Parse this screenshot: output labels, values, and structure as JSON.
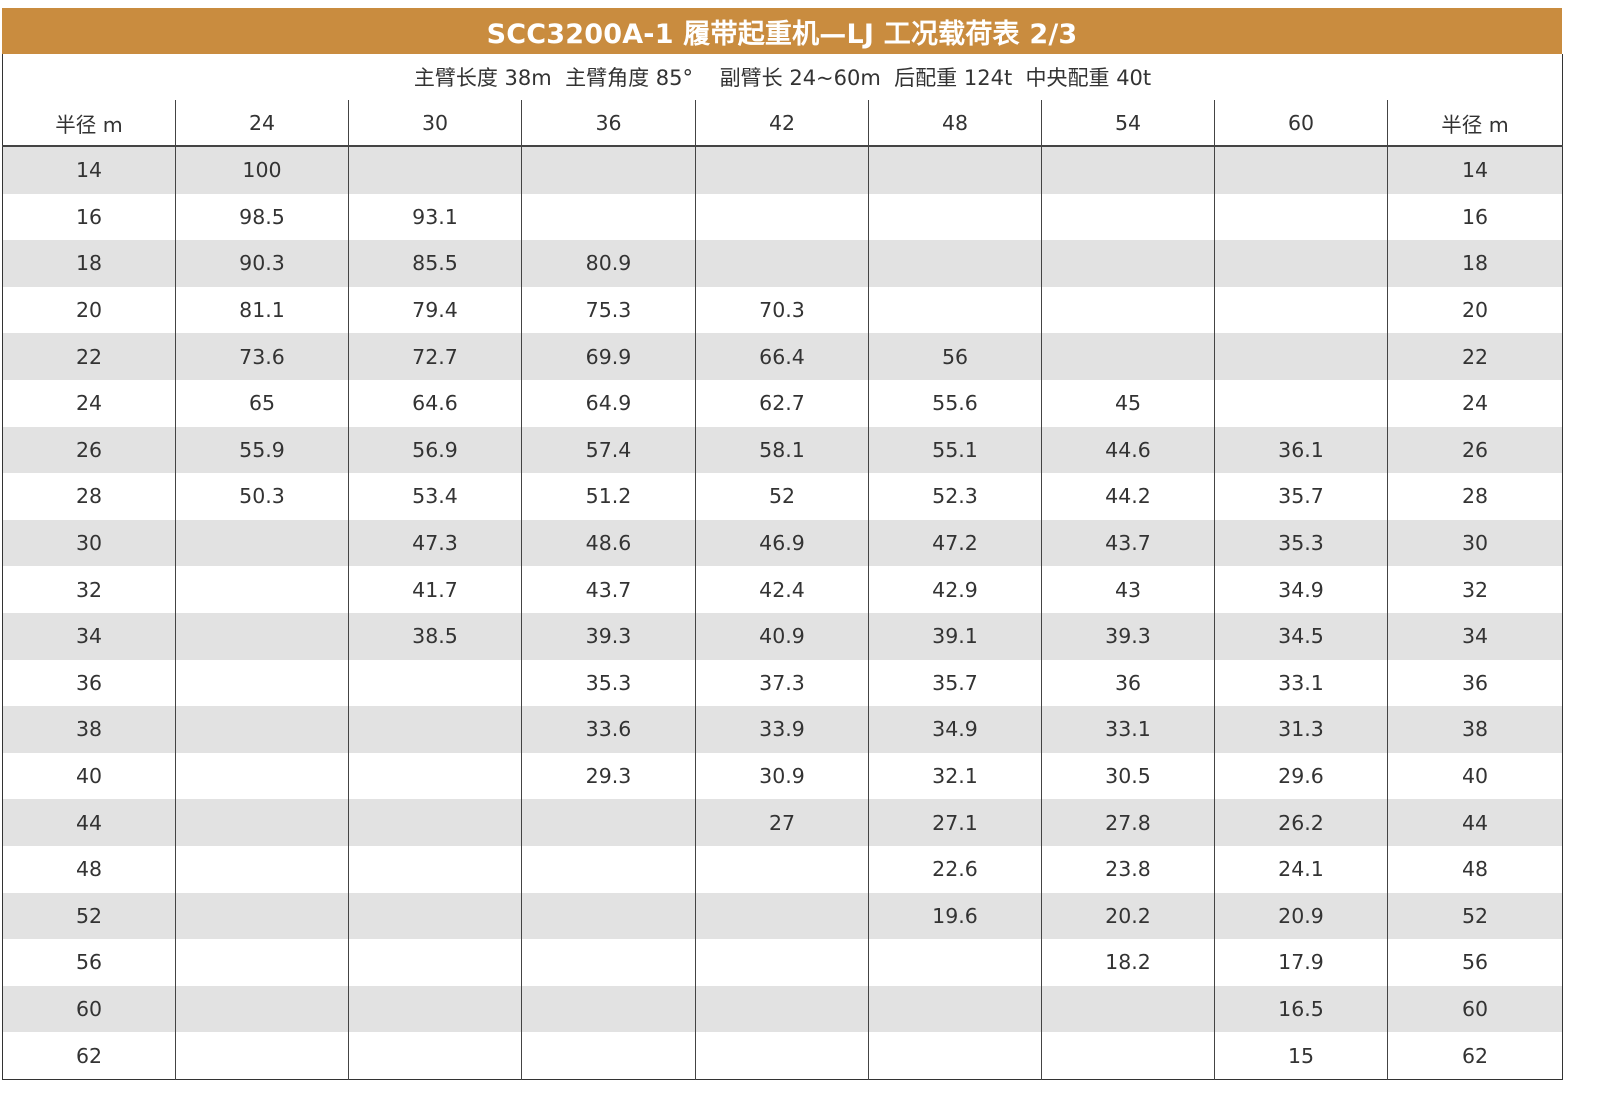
{
  "title": "SCC3200A-1 履带起重机—LJ 工况载荷表 2/3",
  "subtitle": "主臂长度 38m  主臂角度 85°    副臂长 24~60m  后配重 124t  中央配重 40t",
  "header": {
    "radius_label": "半径 m",
    "jib_lengths": [
      "24",
      "30",
      "36",
      "42",
      "48",
      "54",
      "60"
    ],
    "radius_label_right": "半径 m"
  },
  "rows": [
    {
      "radius": "14",
      "values": [
        "100",
        "",
        "",
        "",
        "",
        "",
        ""
      ]
    },
    {
      "radius": "16",
      "values": [
        "98.5",
        "93.1",
        "",
        "",
        "",
        "",
        ""
      ]
    },
    {
      "radius": "18",
      "values": [
        "90.3",
        "85.5",
        "80.9",
        "",
        "",
        "",
        ""
      ]
    },
    {
      "radius": "20",
      "values": [
        "81.1",
        "79.4",
        "75.3",
        "70.3",
        "",
        "",
        ""
      ]
    },
    {
      "radius": "22",
      "values": [
        "73.6",
        "72.7",
        "69.9",
        "66.4",
        "56",
        "",
        ""
      ]
    },
    {
      "radius": "24",
      "values": [
        "65",
        "64.6",
        "64.9",
        "62.7",
        "55.6",
        "45",
        ""
      ]
    },
    {
      "radius": "26",
      "values": [
        "55.9",
        "56.9",
        "57.4",
        "58.1",
        "55.1",
        "44.6",
        "36.1"
      ]
    },
    {
      "radius": "28",
      "values": [
        "50.3",
        "53.4",
        "51.2",
        "52",
        "52.3",
        "44.2",
        "35.7"
      ]
    },
    {
      "radius": "30",
      "values": [
        "",
        "47.3",
        "48.6",
        "46.9",
        "47.2",
        "43.7",
        "35.3"
      ]
    },
    {
      "radius": "32",
      "values": [
        "",
        "41.7",
        "43.7",
        "42.4",
        "42.9",
        "43",
        "34.9"
      ]
    },
    {
      "radius": "34",
      "values": [
        "",
        "38.5",
        "39.3",
        "40.9",
        "39.1",
        "39.3",
        "34.5"
      ]
    },
    {
      "radius": "36",
      "values": [
        "",
        "",
        "35.3",
        "37.3",
        "35.7",
        "36",
        "33.1"
      ]
    },
    {
      "radius": "38",
      "values": [
        "",
        "",
        "33.6",
        "33.9",
        "34.9",
        "33.1",
        "31.3"
      ]
    },
    {
      "radius": "40",
      "values": [
        "",
        "",
        "29.3",
        "30.9",
        "32.1",
        "30.5",
        "29.6"
      ]
    },
    {
      "radius": "44",
      "values": [
        "",
        "",
        "",
        "27",
        "27.1",
        "27.8",
        "26.2"
      ]
    },
    {
      "radius": "48",
      "values": [
        "",
        "",
        "",
        "",
        "22.6",
        "23.8",
        "24.1"
      ]
    },
    {
      "radius": "52",
      "values": [
        "",
        "",
        "",
        "",
        "19.6",
        "20.2",
        "20.9"
      ]
    },
    {
      "radius": "56",
      "values": [
        "",
        "",
        "",
        "",
        "",
        "18.2",
        "17.9"
      ]
    },
    {
      "radius": "60",
      "values": [
        "",
        "",
        "",
        "",
        "",
        "",
        "16.5"
      ]
    },
    {
      "radius": "62",
      "values": [
        "",
        "",
        "",
        "",
        "",
        "",
        "15"
      ]
    }
  ],
  "colors": {
    "title_bar": "#c98c3f",
    "title_text": "#ffffff",
    "stripe": "#e2e2e2",
    "text": "#333333"
  }
}
